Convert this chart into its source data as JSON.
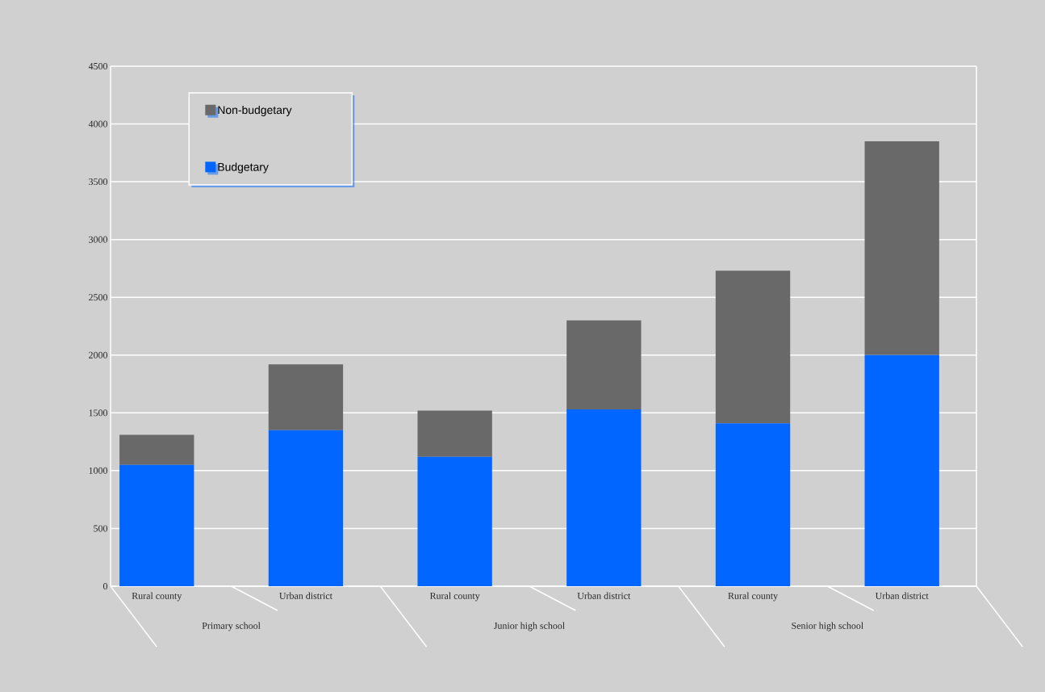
{
  "chart_data": {
    "type": "bar",
    "stacked": true,
    "categories": [
      "Rural county",
      "Urban district",
      "Rural county",
      "Urban district",
      "Rural county",
      "Urban district"
    ],
    "series": [
      {
        "name": "Budgetary",
        "color": "#0066ff",
        "values": [
          1050,
          1350,
          1120,
          1530,
          1410,
          2000
        ]
      },
      {
        "name": "Non-budgetary",
        "color": "#696969",
        "values": [
          260,
          570,
          400,
          770,
          1320,
          1850
        ]
      }
    ],
    "annotations": [
      "Primary school",
      "Junior high school",
      "Senior high school"
    ],
    "ylim": [
      0,
      4500
    ],
    "yticks": [
      0,
      500,
      1000,
      1500,
      2000,
      2500,
      3000,
      3500,
      4000,
      4500
    ],
    "grid": "y",
    "legend": "top left"
  }
}
